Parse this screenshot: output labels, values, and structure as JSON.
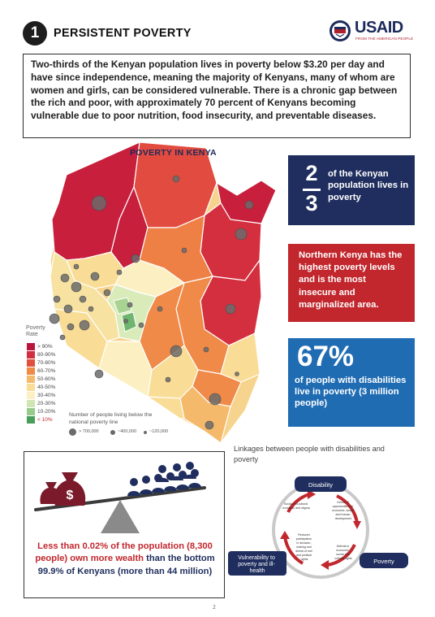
{
  "header": {
    "section_number": "1",
    "title": "PERSISTENT POVERTY",
    "logo_text": "USAID",
    "logo_tagline": "FROM THE AMERICAN PEOPLE"
  },
  "intro": "Two-thirds of the Kenyan population lives in poverty below $3.20 per day and have since independence, meaning the majority of Kenyans, many of whom are women and girls, can be considered vulnerable.  There is a chronic gap between the rich and poor, with approximately 70 percent of Kenyans becoming vulnerable due to poor nutrition, food insecurity, and preventable diseases.",
  "map": {
    "title": "POVERTY IN KENYA",
    "legend_title": "Poverty Rate",
    "legend": [
      {
        "label": "> 90%",
        "color": "#b8163c"
      },
      {
        "label": "80-90%",
        "color": "#cf2f3f"
      },
      {
        "label": "70-80%",
        "color": "#e0503f"
      },
      {
        "label": "60-70%",
        "color": "#ef8a48"
      },
      {
        "label": "50-60%",
        "color": "#f5b96b"
      },
      {
        "label": "40-50%",
        "color": "#f9dc95"
      },
      {
        "label": "30-40%",
        "color": "#fcf0c2"
      },
      {
        "label": "20-30%",
        "color": "#cfe6b2"
      },
      {
        "label": "10-20%",
        "color": "#96cb8b"
      },
      {
        "label": "< 10%",
        "color": "#4a9e5c"
      }
    ],
    "bubble_legend_title": "Number of people living below the national poverty line",
    "bubble_legend": [
      "> 700,000",
      "~400,000",
      "~120,000"
    ]
  },
  "stats": {
    "fraction_numerator": "2",
    "fraction_denominator": "3",
    "two_thirds_text": "of the Kenyan population lives in poverty",
    "north_text": "Northern Kenya has the highest poverty levels and is the most insecure and marginalized area.",
    "disability_percent": "67%",
    "disability_text": "of people with disabilities live in poverty (3 million people)"
  },
  "wealth": {
    "line1_red": "Less than 0.02% of the population (8,300 people) own more wealth",
    "line2_blue": "than the bottom 99.9% of Kenyans (more than 44 million)",
    "icon_symbol": "$"
  },
  "linkages": {
    "title": "Linkages between people with disabilities and poverty",
    "nodes": {
      "disability": "Disability",
      "poverty": "Poverty",
      "vulnerability": "Vulnerability to poverty and ill-health"
    },
    "edge_notes": {
      "social_exclusion": "Social and cultural exclusion and stigma",
      "denial_opportunities": "Denial of opportunities for economic, social and human development",
      "deficits_rights": "Deficits in economic, social and cultural rights",
      "reduced_participation": "Reduced participation in decision-making and denial of civil and political rights"
    }
  },
  "page_number": "2",
  "colors": {
    "navy": "#1f2e5e",
    "red": "#c1272d",
    "blue": "#1f6cb3",
    "legend_bubble": "#6b6b6b"
  }
}
